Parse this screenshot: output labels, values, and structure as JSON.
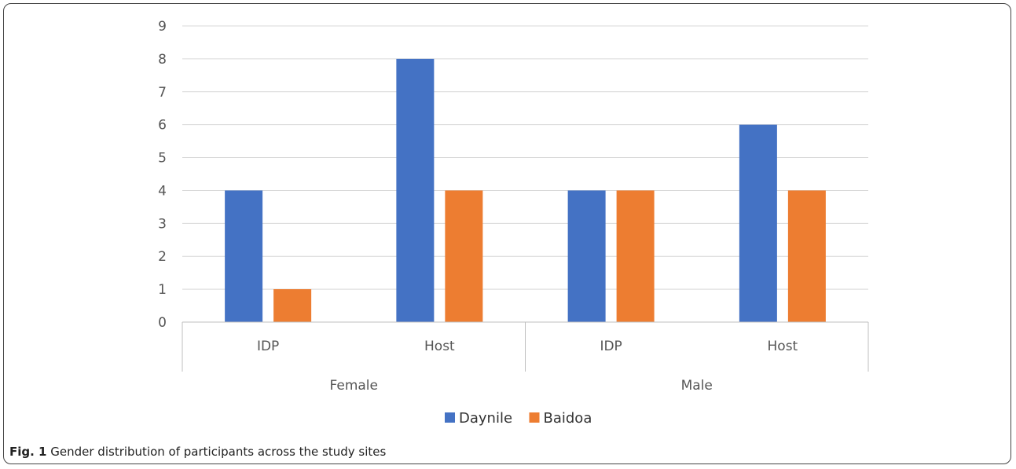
{
  "chart_data": {
    "type": "bar",
    "groups": [
      "Female",
      "Male"
    ],
    "categories": [
      "IDP",
      "Host",
      "IDP",
      "Host"
    ],
    "category_groups": [
      "Female",
      "Female",
      "Male",
      "Male"
    ],
    "series": [
      {
        "name": "Daynile",
        "color": "#4472C4",
        "values": [
          4,
          8,
          4,
          6
        ]
      },
      {
        "name": "Baidoa",
        "color": "#ED7D31",
        "values": [
          1,
          4,
          4,
          4
        ]
      }
    ],
    "ylim": [
      0,
      9
    ],
    "yticks": [
      "0",
      "1",
      "2",
      "3",
      "4",
      "5",
      "6",
      "7",
      "8",
      "9"
    ],
    "grid": true,
    "legend_position": "bottom"
  },
  "caption": {
    "label": "Fig. 1",
    "text": "Gender distribution of participants across the study sites"
  }
}
